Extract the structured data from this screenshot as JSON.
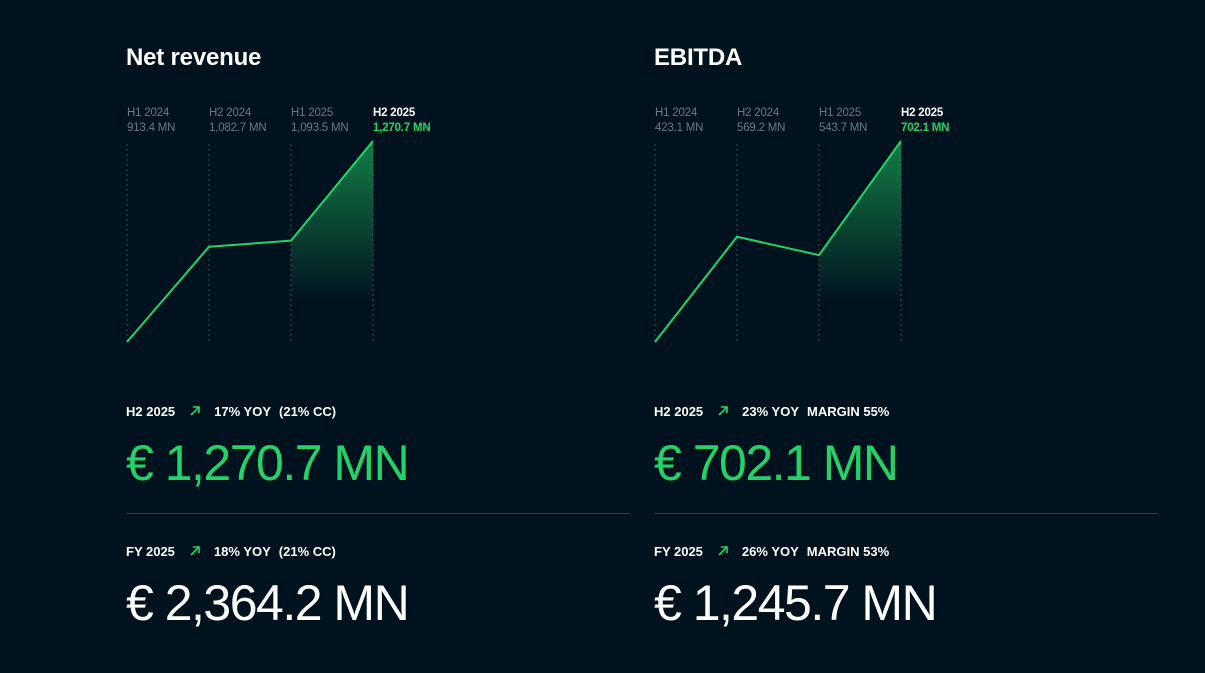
{
  "colors": {
    "background": "#01121f",
    "accent": "#22d468",
    "muted": "#6b7785",
    "text": "#ffffff"
  },
  "panels": [
    {
      "title": "Net revenue",
      "chart_data": {
        "type": "area",
        "title": "Net revenue",
        "categories": [
          "H1 2024",
          "H2 2024",
          "H1 2025",
          "H2 2025"
        ],
        "value_labels": [
          "913.4 MN",
          "1,082.7 MN",
          "1,093.5 MN",
          "1,270.7 MN"
        ],
        "values": [
          913.4,
          1082.7,
          1093.5,
          1270.7
        ],
        "unit": "€ MN",
        "highlight_index": 3,
        "grid": "vertical dotted",
        "shaded_area": "last segment"
      },
      "current": {
        "period": "H2 2025",
        "yoy": "17% YOY",
        "extra": "(21% CC)",
        "value": "€ 1,270.7 MN"
      },
      "full_year": {
        "period": "FY 2025",
        "yoy": "18% YOY",
        "extra": "(21% CC)",
        "value": "€ 2,364.2 MN"
      }
    },
    {
      "title": "EBITDA",
      "chart_data": {
        "type": "area",
        "title": "EBITDA",
        "categories": [
          "H1 2024",
          "H2 2024",
          "H1 2025",
          "H2 2025"
        ],
        "value_labels": [
          "423.1 MN",
          "569.2 MN",
          "543.7 MN",
          "702.1 MN"
        ],
        "values": [
          423.1,
          569.2,
          543.7,
          702.1
        ],
        "unit": "€ MN",
        "highlight_index": 3,
        "grid": "vertical dotted",
        "shaded_area": "last segment"
      },
      "current": {
        "period": "H2 2025",
        "yoy": "23% YOY",
        "extra": "MARGIN 55%",
        "value": "€ 702.1 MN"
      },
      "full_year": {
        "period": "FY 2025",
        "yoy": "26% YOY",
        "extra": "MARGIN 53%",
        "value": "€ 1,245.7 MN"
      }
    }
  ],
  "icons": {
    "trend": "arrow-up-right-icon"
  }
}
